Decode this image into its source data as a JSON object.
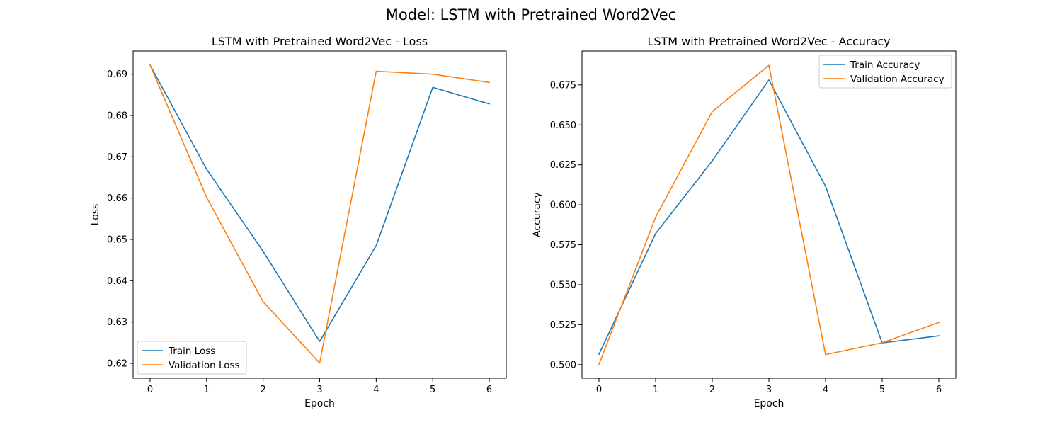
{
  "figure_title": "Model: LSTM with Pretrained Word2Vec",
  "chart_data": [
    {
      "type": "line",
      "title": "LSTM with Pretrained Word2Vec - Loss",
      "xlabel": "Epoch",
      "ylabel": "Loss",
      "xlim": [
        -0.3,
        6.3
      ],
      "ylim": [
        0.6164,
        0.6956
      ],
      "x": [
        0,
        1,
        2,
        3,
        4,
        5,
        6
      ],
      "xticks": [
        "0",
        "1",
        "2",
        "3",
        "4",
        "5",
        "6"
      ],
      "yticks": [
        "0.62",
        "0.63",
        "0.64",
        "0.65",
        "0.66",
        "0.67",
        "0.68",
        "0.69"
      ],
      "ytick_values": [
        0.62,
        0.63,
        0.64,
        0.65,
        0.66,
        0.67,
        0.68,
        0.69
      ],
      "grid": false,
      "legend_position": "lower-left",
      "series": [
        {
          "name": "Train Loss",
          "color": "#1f77b4",
          "values": [
            0.6922,
            0.667,
            0.6471,
            0.6253,
            0.6485,
            0.6868,
            0.6828
          ]
        },
        {
          "name": "Validation Loss",
          "color": "#ff7f0e",
          "values": [
            0.6922,
            0.6602,
            0.6349,
            0.6201,
            0.6907,
            0.69,
            0.688
          ]
        }
      ]
    },
    {
      "type": "line",
      "title": "LSTM with Pretrained Word2Vec - Accuracy",
      "xlabel": "Epoch",
      "ylabel": "Accuracy",
      "xlim": [
        -0.3,
        6.3
      ],
      "ylim": [
        0.4915,
        0.6962
      ],
      "x": [
        0,
        1,
        2,
        3,
        4,
        5,
        6
      ],
      "xticks": [
        "0",
        "1",
        "2",
        "3",
        "4",
        "5",
        "6"
      ],
      "yticks": [
        "0.500",
        "0.525",
        "0.550",
        "0.575",
        "0.600",
        "0.625",
        "0.650",
        "0.675"
      ],
      "ytick_values": [
        0.5,
        0.525,
        0.55,
        0.575,
        0.6,
        0.625,
        0.65,
        0.675
      ],
      "grid": false,
      "legend_position": "upper-right",
      "series": [
        {
          "name": "Train Accuracy",
          "color": "#1f77b4",
          "values": [
            0.5065,
            0.582,
            0.6275,
            0.6781,
            0.6116,
            0.5136,
            0.518
          ]
        },
        {
          "name": "Validation Accuracy",
          "color": "#ff7f0e",
          "values": [
            0.5002,
            0.5922,
            0.6583,
            0.6873,
            0.5063,
            0.5137,
            0.5264
          ]
        }
      ]
    }
  ]
}
